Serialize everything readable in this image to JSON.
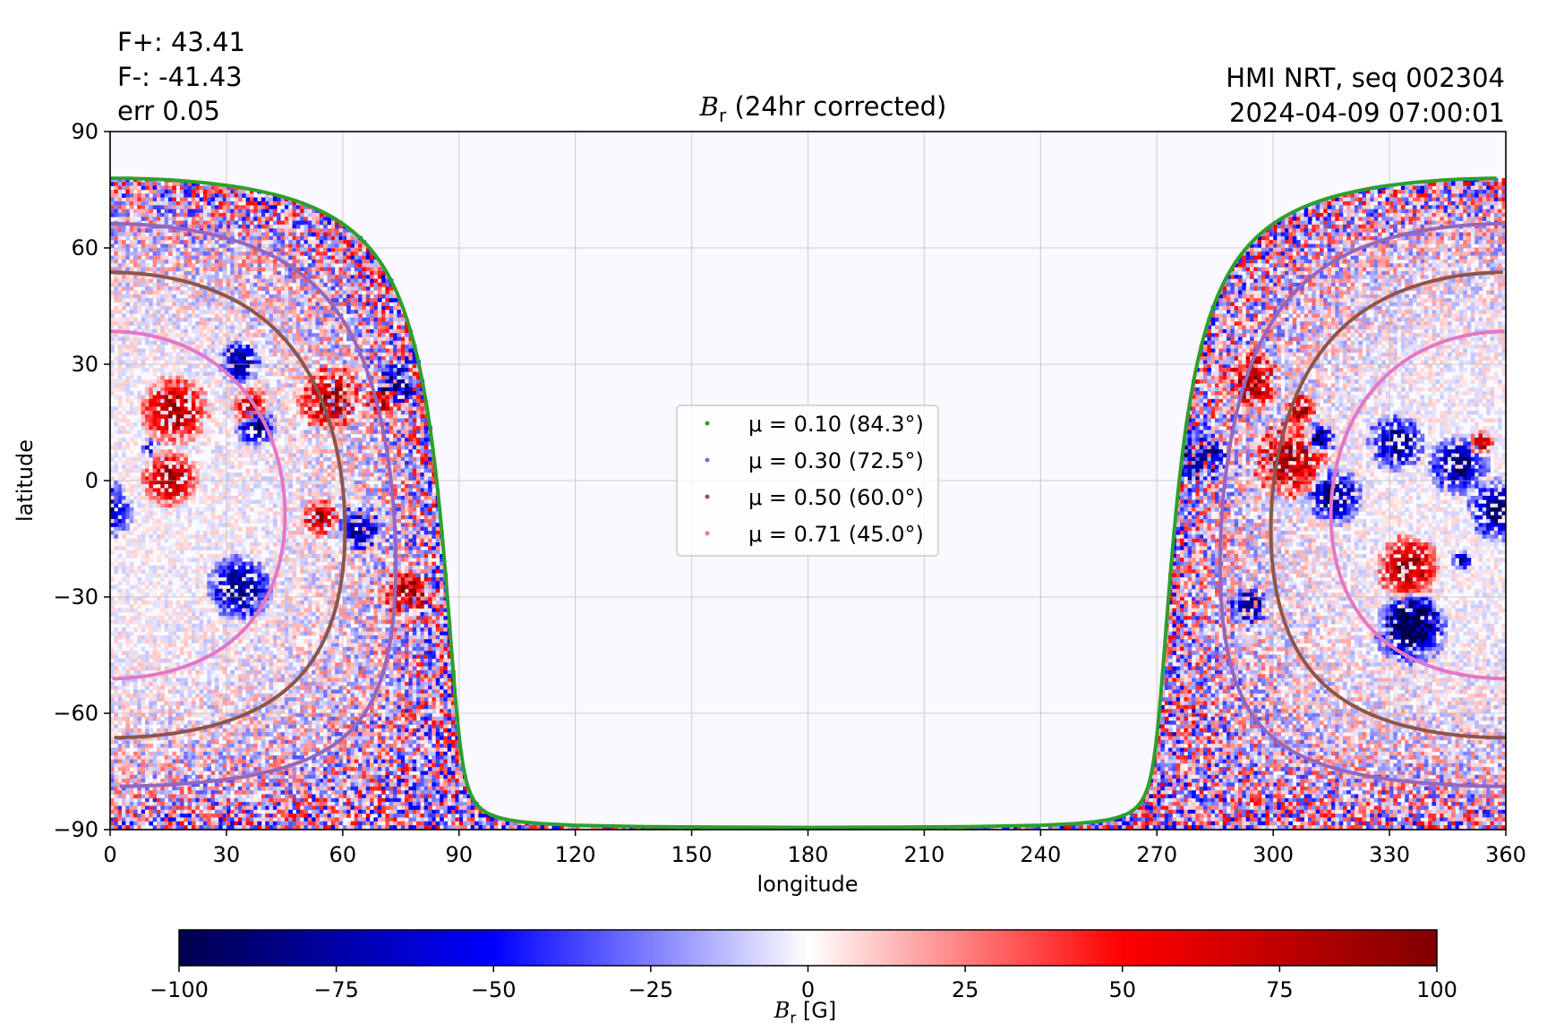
{
  "header": {
    "flux_pos": "F+: 43.41",
    "flux_neg": "F-: -41.43",
    "err": "err 0.05",
    "title_symbol": "B",
    "title_sub": "r",
    "title_rest": " (24hr corrected)",
    "source": "HMI NRT, seq 002304",
    "timestamp": "2024-04-09 07:00:01"
  },
  "colorbar": {
    "label_symbol": "B",
    "label_sub": "r",
    "label_rest": " [G]",
    "range": [
      -100,
      100
    ],
    "ticks": [
      -100,
      -75,
      -50,
      -25,
      0,
      25,
      50,
      75,
      100
    ],
    "colors": [
      "#00004c",
      "#0000ff",
      "#ffffff",
      "#ff0000",
      "#800000"
    ]
  },
  "chart_data": {
    "type": "heatmap",
    "title": "B_r (24hr corrected)",
    "xlabel": "longitude",
    "ylabel": "latitude",
    "xlim": [
      0,
      360
    ],
    "ylim": [
      -90,
      90
    ],
    "xticks": [
      0,
      30,
      60,
      90,
      120,
      150,
      180,
      210,
      240,
      270,
      300,
      330,
      360
    ],
    "yticks": [
      -90,
      -60,
      -30,
      0,
      30,
      60,
      90
    ],
    "grid": true,
    "legend_position": "center",
    "colormap": "seismic",
    "color_range": [
      -100,
      100
    ],
    "observed_region": {
      "visible_longitudes": "0–90 and 270–360",
      "disk_center_longitude": 0,
      "disk_center_latitude": -6.3,
      "pole_visibility_latitude": 78
    },
    "series": [
      {
        "name": "μ = 0.10 (84.3°)",
        "mu": 0.1,
        "angle_deg": 84.3,
        "color": "#2ca02c"
      },
      {
        "name": "μ = 0.30 (72.5°)",
        "mu": 0.3,
        "angle_deg": 72.5,
        "color": "#9467bd"
      },
      {
        "name": "μ = 0.50 (60.0°)",
        "mu": 0.5,
        "angle_deg": 60.0,
        "color": "#8c564b"
      },
      {
        "name": "μ = 0.71 (45.0°)",
        "mu": 0.71,
        "angle_deg": 45.0,
        "color": "#e377c2"
      }
    ],
    "legend": [
      {
        "text": "μ = 0.10 (84.3°)",
        "color": "#2ca02c"
      },
      {
        "text": "μ = 0.30 (72.5°)",
        "color": "#9467bd"
      },
      {
        "text": "μ = 0.50 (60.0°)",
        "color": "#8c564b"
      },
      {
        "text": "μ = 0.71 (45.0°)",
        "color": "#e377c2"
      }
    ]
  }
}
